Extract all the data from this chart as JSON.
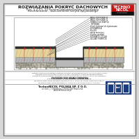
{
  "title_line1": "ROZWIĄZANIA POKRYĆ DACHOWYCH",
  "title_line2": "Rys. 1.2.3.1_13 System dwuwarstwowy mocowany",
  "title_line3": "mechanicznie - uszczelnienie koryta spływowego",
  "layers": [
    "MBUL TOP PUR/B 50",
    "MBUL TOP PUR/B 52",
    "FIREBLOC/LO EKW 54",
    "TOP BOND",
    "klocki korkowe lub dystansowe",
    "BITUPAPER A",
    "Klej HS",
    "wkręt mocujący",
    "blacha oporowa",
    "BITURATE 5.3CLUB",
    "IZOLBET POKRYCIE"
  ],
  "footer_text1": "TechnoNICOL POLSKA SP. Z O.O.",
  "footer_text2": "ul. Gen. J. Chłodkego 178 00-028 Piaseczno",
  "footer_text3": "www.technonicol.pl",
  "page_bg": "#ffffff",
  "outer_bg": "#d8d8d8",
  "logo_red": "#cc1111",
  "logo_dark": "#222222",
  "footer_logo_blue": "#1a3a7a"
}
